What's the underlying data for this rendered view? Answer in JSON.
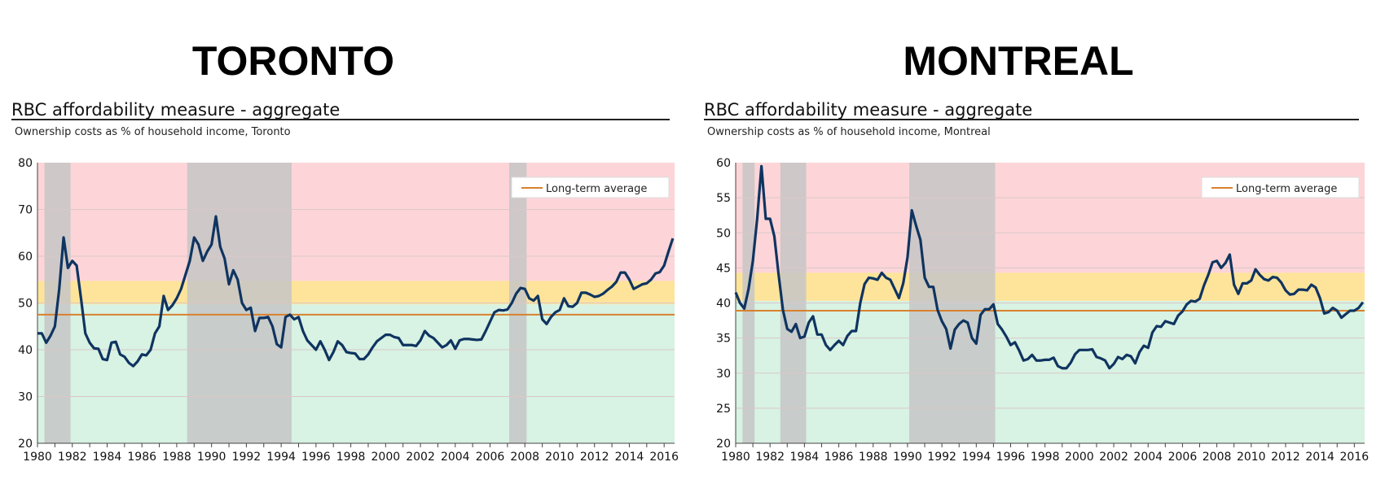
{
  "colors": {
    "line": "#0f3460",
    "average": "#d9812f",
    "red_zone": "#fdd5d8",
    "yellow_zone": "#fde49a",
    "green_zone": "#d8f2e3",
    "recession": "#c6c6c6"
  },
  "chart_data": [
    {
      "type": "line",
      "city": "TORONTO",
      "title": "RBC affordability measure - aggregate",
      "subtitle": "Ownership costs as % of household income, Toronto",
      "legend": "Long-term average",
      "legend_position": "top-right",
      "grid": true,
      "ylim": [
        20,
        80
      ],
      "yticks": [
        20,
        30,
        40,
        50,
        60,
        70,
        80
      ],
      "xlim": [
        1980,
        2016.6
      ],
      "xticks": [
        1980,
        1982,
        1984,
        1986,
        1988,
        1990,
        1992,
        1994,
        1996,
        1998,
        2000,
        2002,
        2004,
        2006,
        2008,
        2010,
        2012,
        2014,
        2016
      ],
      "long_term_average": 47.5,
      "zones": {
        "green_below": 49.7,
        "yellow_below": 54.7
      },
      "recessions": [
        [
          1980.4,
          1981.9
        ],
        [
          1988.6,
          1994.6
        ],
        [
          2007.1,
          2008.1
        ]
      ],
      "x": [
        1980,
        1980.25,
        1980.5,
        1980.75,
        1981,
        1981.25,
        1981.5,
        1981.75,
        1982,
        1982.25,
        1982.5,
        1982.75,
        1983,
        1983.25,
        1983.5,
        1983.75,
        1984,
        1984.25,
        1984.5,
        1984.75,
        1985,
        1985.25,
        1985.5,
        1985.75,
        1986,
        1986.25,
        1986.5,
        1986.75,
        1987,
        1987.25,
        1987.5,
        1987.75,
        1988,
        1988.25,
        1988.5,
        1988.75,
        1989,
        1989.25,
        1989.5,
        1989.75,
        1990,
        1990.25,
        1990.5,
        1990.75,
        1991,
        1991.25,
        1991.5,
        1991.75,
        1992,
        1992.25,
        1992.5,
        1992.75,
        1993,
        1993.25,
        1993.5,
        1993.75,
        1994,
        1994.25,
        1994.5,
        1994.75,
        1995,
        1995.25,
        1995.5,
        1995.75,
        1996,
        1996.25,
        1996.5,
        1996.75,
        1997,
        1997.25,
        1997.5,
        1997.75,
        1998,
        1998.25,
        1998.5,
        1998.75,
        1999,
        1999.25,
        1999.5,
        1999.75,
        2000,
        2000.25,
        2000.5,
        2000.75,
        2001,
        2001.25,
        2001.5,
        2001.75,
        2002,
        2002.25,
        2002.5,
        2002.75,
        2003,
        2003.25,
        2003.5,
        2003.75,
        2004,
        2004.25,
        2004.5,
        2004.75,
        2005,
        2005.25,
        2005.5,
        2005.75,
        2006,
        2006.25,
        2006.5,
        2006.75,
        2007,
        2007.25,
        2007.5,
        2007.75,
        2008,
        2008.25,
        2008.5,
        2008.75,
        2009,
        2009.25,
        2009.5,
        2009.75,
        2010,
        2010.25,
        2010.5,
        2010.75,
        2011,
        2011.25,
        2011.5,
        2011.75,
        2012,
        2012.25,
        2012.5,
        2012.75,
        2013,
        2013.25,
        2013.5,
        2013.75,
        2014,
        2014.25,
        2014.5,
        2014.75,
        2015,
        2015.25,
        2015.5,
        2015.75,
        2016,
        2016.25,
        2016.5
      ],
      "values": [
        43.5,
        43.5,
        41.5,
        43,
        45,
        53,
        64,
        57.5,
        59,
        58,
        51,
        43.5,
        41.5,
        40.3,
        40.2,
        38,
        37.8,
        41.5,
        41.7,
        39,
        38.5,
        37.2,
        36.5,
        37.5,
        39,
        38.8,
        40,
        43.5,
        45,
        51.5,
        48.5,
        49.5,
        51,
        53,
        56,
        59,
        64,
        62.5,
        59,
        61,
        62.5,
        68.5,
        62,
        59.5,
        54,
        57,
        55,
        50,
        48.5,
        49,
        44,
        46.8,
        46.8,
        47,
        45,
        41.2,
        40.5,
        47,
        47.5,
        46.5,
        47,
        44,
        42,
        41,
        40,
        41.8,
        40,
        37.8,
        39.5,
        41.8,
        41,
        39.5,
        39.3,
        39.2,
        38,
        38,
        39,
        40.5,
        41.8,
        42.5,
        43.2,
        43.2,
        42.7,
        42.5,
        41,
        41,
        41,
        40.8,
        42,
        44,
        43,
        42.5,
        41.5,
        40.5,
        41,
        42,
        40.2,
        42,
        42.3,
        42.3,
        42.2,
        42.1,
        42.2,
        44,
        46,
        48,
        48.5,
        48.4,
        48.6,
        50,
        52,
        53.2,
        53,
        51,
        50.5,
        51.5,
        46.5,
        45.5,
        47,
        48,
        48.5,
        51,
        49.3,
        49.2,
        50,
        52.2,
        52.2,
        51.8,
        51.3,
        51.5,
        52,
        52.8,
        53.5,
        54.5,
        56.5,
        56.5,
        55,
        53,
        53.5,
        54,
        54.2,
        55,
        56.3,
        56.6,
        58,
        61,
        63.8
      ]
    },
    {
      "type": "line",
      "city": "MONTREAL",
      "title": "RBC affordability measure - aggregate",
      "subtitle": "Ownership costs as % of household income, Montreal",
      "legend": "Long-term average",
      "legend_position": "top-right",
      "grid": true,
      "ylim": [
        20,
        60
      ],
      "yticks": [
        20,
        25,
        30,
        35,
        40,
        45,
        50,
        55,
        60
      ],
      "xlim": [
        1980,
        2016.6
      ],
      "xticks": [
        1980,
        1982,
        1984,
        1986,
        1988,
        1990,
        1992,
        1994,
        1996,
        1998,
        2000,
        2002,
        2004,
        2006,
        2008,
        2010,
        2012,
        2014,
        2016
      ],
      "long_term_average": 38.9,
      "zones": {
        "green_below": 40.3,
        "yellow_below": 44.3
      },
      "recessions": [
        [
          1980.4,
          1981.1
        ],
        [
          1982.6,
          1984.1
        ],
        [
          1990.1,
          1995.1
        ]
      ],
      "x": [
        1980,
        1980.25,
        1980.5,
        1980.75,
        1981,
        1981.25,
        1981.5,
        1981.75,
        1982,
        1982.25,
        1982.5,
        1982.75,
        1983,
        1983.25,
        1983.5,
        1983.75,
        1984,
        1984.25,
        1984.5,
        1984.75,
        1985,
        1985.25,
        1985.5,
        1985.75,
        1986,
        1986.25,
        1986.5,
        1986.75,
        1987,
        1987.25,
        1987.5,
        1987.75,
        1988,
        1988.25,
        1988.5,
        1988.75,
        1989,
        1989.25,
        1989.5,
        1989.75,
        1990,
        1990.25,
        1990.5,
        1990.75,
        1991,
        1991.25,
        1991.5,
        1991.75,
        1992,
        1992.25,
        1992.5,
        1992.75,
        1993,
        1993.25,
        1993.5,
        1993.75,
        1994,
        1994.25,
        1994.5,
        1994.75,
        1995,
        1995.25,
        1995.5,
        1995.75,
        1996,
        1996.25,
        1996.5,
        1996.75,
        1997,
        1997.25,
        1997.5,
        1997.75,
        1998,
        1998.25,
        1998.5,
        1998.75,
        1999,
        1999.25,
        1999.5,
        1999.75,
        2000,
        2000.25,
        2000.5,
        2000.75,
        2001,
        2001.25,
        2001.5,
        2001.75,
        2002,
        2002.25,
        2002.5,
        2002.75,
        2003,
        2003.25,
        2003.5,
        2003.75,
        2004,
        2004.25,
        2004.5,
        2004.75,
        2005,
        2005.25,
        2005.5,
        2005.75,
        2006,
        2006.25,
        2006.5,
        2006.75,
        2007,
        2007.25,
        2007.5,
        2007.75,
        2008,
        2008.25,
        2008.5,
        2008.75,
        2009,
        2009.25,
        2009.5,
        2009.75,
        2010,
        2010.25,
        2010.5,
        2010.75,
        2011,
        2011.25,
        2011.5,
        2011.75,
        2012,
        2012.25,
        2012.5,
        2012.75,
        2013,
        2013.25,
        2013.5,
        2013.75,
        2014,
        2014.25,
        2014.5,
        2014.75,
        2015,
        2015.25,
        2015.5,
        2015.75,
        2016,
        2016.25,
        2016.5
      ],
      "values": [
        41.5,
        40,
        39.2,
        42,
        46,
        52,
        59.5,
        52,
        52,
        49.5,
        44,
        39,
        36.3,
        35.9,
        37,
        35,
        35.2,
        37.2,
        38.1,
        35.5,
        35.5,
        34,
        33.3,
        34,
        34.6,
        34,
        35.3,
        36,
        36,
        40,
        42.7,
        43.6,
        43.5,
        43.3,
        44.3,
        43.6,
        43.3,
        42,
        40.7,
        42.8,
        46.5,
        53.2,
        51,
        49,
        43.6,
        42.3,
        42.3,
        39,
        37.4,
        36.3,
        33.5,
        36.2,
        37,
        37.5,
        37.2,
        35,
        34.2,
        38.3,
        39.1,
        39.1,
        39.8,
        37,
        36.2,
        35.2,
        34,
        34.4,
        33.2,
        31.8,
        32,
        32.6,
        31.8,
        31.8,
        31.9,
        31.9,
        32.2,
        31,
        30.7,
        30.7,
        31.5,
        32.7,
        33.3,
        33.3,
        33.3,
        33.4,
        32.3,
        32.1,
        31.8,
        30.7,
        31.3,
        32.3,
        32,
        32.6,
        32.4,
        31.4,
        33,
        33.9,
        33.6,
        35.8,
        36.7,
        36.6,
        37.4,
        37.2,
        37,
        38.2,
        38.8,
        39.8,
        40.3,
        40.2,
        40.6,
        42.5,
        44,
        45.8,
        46,
        45,
        45.7,
        46.9,
        42.6,
        41.3,
        42.8,
        42.8,
        43.2,
        44.8,
        44,
        43.4,
        43.2,
        43.7,
        43.6,
        42.9,
        41.8,
        41.2,
        41.3,
        41.9,
        41.9,
        41.8,
        42.6,
        42.2,
        40.7,
        38.5,
        38.7,
        39.3,
        38.9,
        37.9,
        38.4,
        38.9,
        38.9,
        39.3,
        40.1
      ]
    }
  ]
}
